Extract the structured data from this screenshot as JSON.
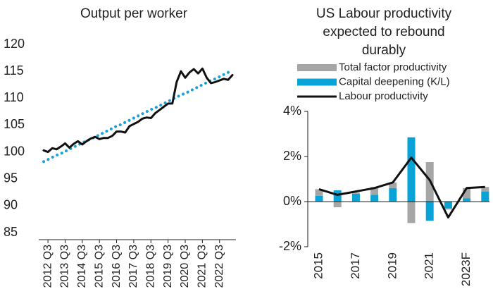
{
  "chart_data": [
    {
      "type": "line",
      "title": "Output per worker",
      "categories": [
        null,
        "2012 Q3",
        null,
        null,
        null,
        "2013 Q3",
        null,
        null,
        null,
        "2014 Q3",
        null,
        null,
        null,
        "2015 Q3",
        null,
        null,
        null,
        "2016 Q3",
        null,
        null,
        null,
        "2017 Q3",
        null,
        null,
        null,
        "2018 Q3",
        null,
        null,
        null,
        "2019 Q3",
        null,
        null,
        null,
        "2020 Q3",
        null,
        null,
        null,
        "2021 Q3",
        null,
        null,
        null,
        "2022 Q3",
        null,
        null,
        null
      ],
      "series": [
        {
          "color": "#111111",
          "style": "solid",
          "values": [
            100.3,
            100.0,
            100.7,
            100.5,
            101.0,
            101.6,
            100.8,
            101.5,
            102.0,
            101.4,
            102.0,
            102.5,
            102.8,
            102.4,
            102.6,
            102.6,
            103.0,
            103.8,
            103.8,
            103.6,
            104.8,
            105.2,
            105.6,
            106.2,
            106.4,
            106.3,
            107.2,
            107.8,
            108.4,
            109.0,
            109.0,
            113.0,
            115.0,
            113.8,
            114.8,
            115.4,
            114.6,
            115.5,
            113.8,
            112.8,
            113.0,
            113.3,
            113.6,
            113.4,
            114.3
          ]
        },
        {
          "color": "#1aa0d8",
          "style": "dotted",
          "values": [
            98.2,
            98.6,
            99.0,
            99.4,
            99.7,
            100.1,
            100.5,
            100.9,
            101.3,
            101.7,
            102.1,
            102.4,
            102.8,
            103.2,
            103.6,
            104.0,
            104.4,
            104.8,
            105.1,
            105.5,
            105.9,
            106.3,
            106.7,
            107.1,
            107.5,
            107.9,
            108.2,
            108.6,
            109.0,
            109.4,
            109.8,
            110.2,
            110.6,
            110.9,
            111.3,
            111.7,
            112.1,
            112.5,
            112.9,
            113.3,
            113.6,
            114.0,
            114.4,
            114.8,
            115.2
          ]
        }
      ],
      "ylim": [
        85,
        120
      ],
      "yticks": [
        85,
        90,
        95,
        100,
        105,
        110,
        115,
        120
      ]
    },
    {
      "type": "stacked-bar-line",
      "title": "US Labour productivity expected to rebound durably",
      "categories": [
        "2015",
        null,
        "2017",
        null,
        "2019",
        null,
        "2021",
        null,
        "2023F",
        null
      ],
      "series": [
        {
          "name": "Total factor productivity",
          "color": "#a6a6a6",
          "kind": "bar",
          "values": [
            0.3,
            -0.25,
            0.05,
            0.35,
            0.25,
            -0.95,
            1.75,
            -0.05,
            0.45,
            0.2
          ]
        },
        {
          "name": "Capital deepening (K/L)",
          "color": "#0aa3d8",
          "kind": "bar",
          "values": [
            0.25,
            0.5,
            0.35,
            0.3,
            0.6,
            2.85,
            -0.85,
            -0.3,
            0.15,
            0.45
          ]
        },
        {
          "name": "Labour productivity",
          "color": "#111111",
          "kind": "line",
          "values": [
            0.55,
            0.3,
            0.45,
            0.6,
            0.85,
            1.95,
            0.95,
            -0.7,
            0.6,
            0.65
          ]
        }
      ],
      "ylim": [
        -2,
        4
      ],
      "yticks": [
        {
          "value": -2,
          "label": "-2%"
        },
        {
          "value": 0,
          "label": "0%"
        },
        {
          "value": 2,
          "label": "2%"
        },
        {
          "value": 4,
          "label": "4%"
        }
      ],
      "legend": "top"
    }
  ]
}
